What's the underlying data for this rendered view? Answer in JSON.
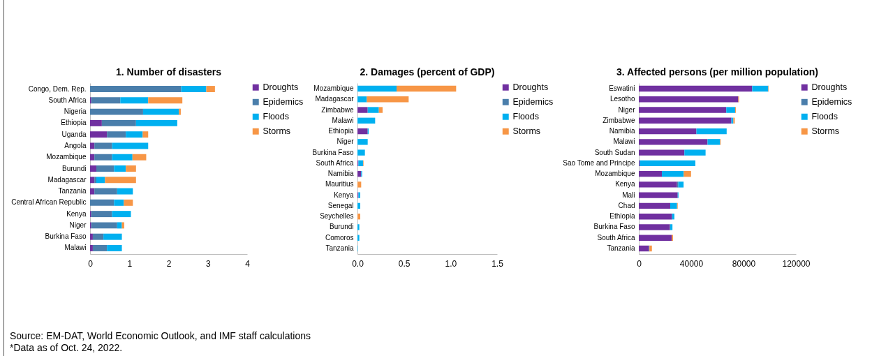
{
  "chart_data": [
    {
      "type": "bar",
      "orientation": "horizontal",
      "stacked": true,
      "title": "1. Number of disasters",
      "legend": "right",
      "grid": false,
      "categories": [
        "Congo, Dem. Rep.",
        "South Africa",
        "Nigeria",
        "Ethiopia",
        "Uganda",
        "Angola",
        "Mozambique",
        "Burundi",
        "Madagascar",
        "Tanzania",
        "Central African Republic",
        "Kenya",
        "Niger",
        "Burkina Faso",
        "Malawi"
      ],
      "series": [
        {
          "name": "Droughts",
          "color": "#7030a0",
          "values": [
            null,
            0.03,
            null,
            0.3,
            0.43,
            0.11,
            0.11,
            0.16,
            0.11,
            0.11,
            null,
            0.03,
            0.03,
            0.07,
            0.07
          ]
        },
        {
          "name": "Epidemics",
          "color": "#4a7eab",
          "values": [
            2.32,
            0.74,
            1.35,
            0.87,
            0.48,
            0.45,
            0.45,
            0.45,
            0.05,
            0.58,
            0.61,
            0.53,
            0.66,
            0.27,
            0.36
          ]
        },
        {
          "name": "Floods",
          "color": "#00b0f0",
          "values": [
            0.64,
            0.71,
            0.91,
            1.05,
            0.43,
            0.92,
            0.52,
            0.3,
            0.22,
            0.4,
            0.25,
            0.48,
            0.12,
            0.47,
            0.38
          ]
        },
        {
          "name": "Storms",
          "color": "#f79646",
          "values": [
            0.22,
            0.87,
            0.05,
            null,
            0.14,
            null,
            0.35,
            0.26,
            0.79,
            null,
            0.23,
            null,
            0.06,
            null,
            null
          ]
        }
      ],
      "xlim": [
        0,
        4
      ],
      "xticks": [
        0,
        1,
        2,
        3,
        4
      ],
      "annotations": [
        "Source: EM-DAT, World Economic Outlook, and IMF staff calculations",
        "*Data as of Oct. 24, 2022."
      ]
    },
    {
      "type": "bar",
      "orientation": "horizontal",
      "stacked": true,
      "title": "2. Damages (percent of GDP)",
      "legend": "right",
      "grid": false,
      "categories": [
        "Mozambique",
        "Madagascar",
        "Zimbabwe",
        "Malawi",
        "Ethiopia",
        "Niger",
        "Burkina Faso",
        "South Africa",
        "Namibia",
        "Mauritius",
        "Kenya",
        "Senegal",
        "Seychelles",
        "Burundi",
        "Comoros",
        "Tanzania"
      ],
      "series": [
        {
          "name": "Droughts",
          "color": "#7030a0",
          "values": [
            null,
            null,
            0.11,
            null,
            0.11,
            null,
            null,
            0.01,
            0.04,
            null,
            0.01,
            null,
            null,
            null,
            null,
            null
          ]
        },
        {
          "name": "Epidemics",
          "color": "#4a7eab",
          "values": [
            null,
            null,
            null,
            null,
            null,
            null,
            null,
            null,
            null,
            null,
            null,
            null,
            null,
            null,
            null,
            null
          ]
        },
        {
          "name": "Floods",
          "color": "#00b0f0",
          "values": [
            0.42,
            0.1,
            0.12,
            0.19,
            0.01,
            0.11,
            0.08,
            0.05,
            0.01,
            null,
            0.02,
            0.03,
            null,
            0.02,
            0.02,
            0.004
          ]
        },
        {
          "name": "Storms",
          "color": "#f79646",
          "values": [
            0.64,
            0.45,
            0.04,
            null,
            null,
            null,
            null,
            0.005,
            null,
            0.04,
            null,
            null,
            0.03,
            null,
            null,
            null
          ]
        }
      ],
      "xlim": [
        0,
        1.5
      ],
      "xticks": [
        {
          "value": 0,
          "label": "0.0"
        },
        {
          "value": 0.5,
          "label": "0.5"
        },
        {
          "value": 1,
          "label": "1.0"
        },
        {
          "value": 1.5,
          "label": "1.5"
        }
      ]
    },
    {
      "type": "bar",
      "orientation": "horizontal",
      "stacked": true,
      "title": "3. Affected persons (per million population)",
      "legend": "right",
      "grid": false,
      "categories": [
        "Eswatini",
        "Lesotho",
        "Niger",
        "Zimbabwe",
        "Namibia",
        "Malawi",
        "South Sudan",
        "Sao Tome and Principe",
        "Mozambique",
        "Kenya",
        "Mali",
        "Chad",
        "Ethiopia",
        "Burkina Faso",
        "South Africa",
        "Tanzania"
      ],
      "series": [
        {
          "name": "Droughts",
          "color": "#7030a0",
          "values": [
            86600,
            76000,
            66800,
            70700,
            44000,
            52500,
            34800,
            800,
            17600,
            29200,
            29700,
            24000,
            25400,
            23700,
            25100,
            7600
          ]
        },
        {
          "name": "Epidemics",
          "color": "#4a7eab",
          "values": [
            null,
            null,
            null,
            null,
            null,
            null,
            null,
            null,
            null,
            1000,
            null,
            null,
            null,
            300,
            null,
            500
          ]
        },
        {
          "name": "Floods",
          "color": "#00b0f0",
          "values": [
            12300,
            null,
            6800,
            1500,
            23100,
            9600,
            16200,
            42400,
            16700,
            4000,
            600,
            5200,
            1800,
            1700,
            null,
            null
          ]
        },
        {
          "name": "Storms",
          "color": "#f79646",
          "values": [
            300,
            600,
            500,
            1100,
            null,
            500,
            null,
            null,
            5600,
            null,
            null,
            500,
            null,
            null,
            1000,
            1900
          ]
        }
      ],
      "xlim": [
        0,
        120000
      ],
      "xticks": [
        0,
        40000,
        80000,
        120000
      ]
    }
  ]
}
